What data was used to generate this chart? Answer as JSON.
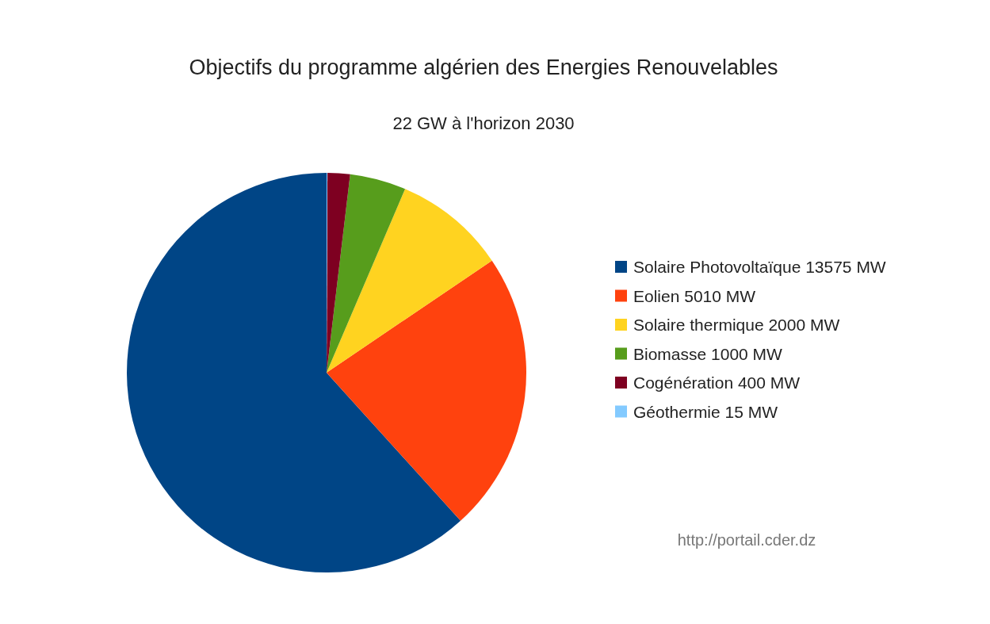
{
  "chart_data": {
    "type": "pie",
    "title": "Objectifs du programme algérien des Energies Renouvelables",
    "subtitle": "22 GW à l'horizon 2030",
    "categories": [
      "Solaire Photovoltaïque 13575 MW",
      "Eolien 5010 MW",
      "Solaire thermique 2000 MW",
      "Biomasse 1000 MW",
      "Cogénération 400 MW",
      "Géothermie 15 MW"
    ],
    "values": [
      13575,
      5010,
      2000,
      1000,
      400,
      15
    ],
    "colors": [
      "#004586",
      "#ff420e",
      "#ffd320",
      "#579d1c",
      "#7e0021",
      "#83caff"
    ],
    "legend": "right",
    "annotations": [
      "http://portail.cder.dz"
    ]
  }
}
